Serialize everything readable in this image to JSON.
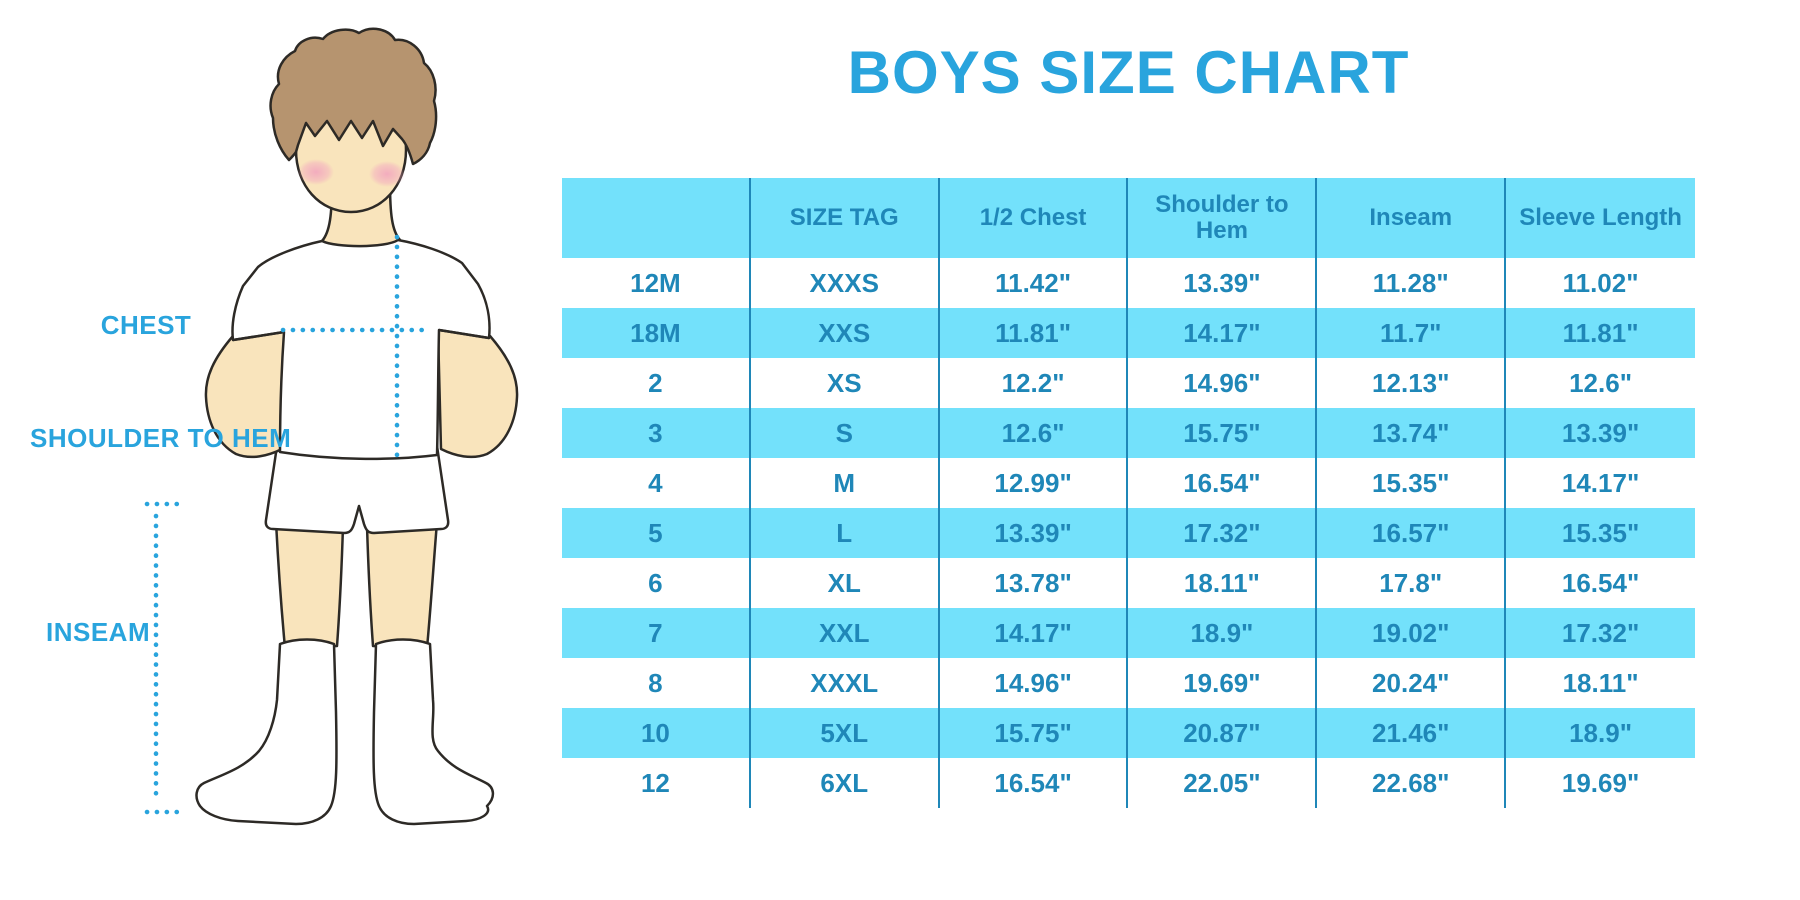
{
  "title": "BOYS SIZE CHART",
  "figure": {
    "labels": {
      "chest": "CHEST",
      "shoulder_to_hem": "SHOULDER TO HEM",
      "inseam": "INSEAM"
    }
  },
  "table": {
    "columns": [
      "",
      "SIZE TAG",
      "1/2 Chest",
      "Shoulder to Hem",
      "Inseam",
      "Sleeve Length"
    ],
    "rows": [
      [
        "12M",
        "XXXS",
        "11.42\"",
        "13.39\"",
        "11.28\"",
        "11.02\""
      ],
      [
        "18M",
        "XXS",
        "11.81\"",
        "14.17\"",
        "11.7\"",
        "11.81\""
      ],
      [
        "2",
        "XS",
        "12.2\"",
        "14.96\"",
        "12.13\"",
        "12.6\""
      ],
      [
        "3",
        "S",
        "12.6\"",
        "15.75\"",
        "13.74\"",
        "13.39\""
      ],
      [
        "4",
        "M",
        "12.99\"",
        "16.54\"",
        "15.35\"",
        "14.17\""
      ],
      [
        "5",
        "L",
        "13.39\"",
        "17.32\"",
        "16.57\"",
        "15.35\""
      ],
      [
        "6",
        "XL",
        "13.78\"",
        "18.11\"",
        "17.8\"",
        "16.54\""
      ],
      [
        "7",
        "XXL",
        "14.17\"",
        "18.9\"",
        "19.02\"",
        "17.32\""
      ],
      [
        "8",
        "XXXL",
        "14.96\"",
        "19.69\"",
        "20.24\"",
        "18.11\""
      ],
      [
        "10",
        "5XL",
        "15.75\"",
        "20.87\"",
        "21.46\"",
        "18.9\""
      ],
      [
        "12",
        "6XL",
        "16.54\"",
        "22.05\"",
        "22.68\"",
        "19.69\""
      ]
    ]
  },
  "colors": {
    "accent_blue": "#29A4DD",
    "row_band_blue": "#73E1FB",
    "table_text_blue": "#1F87B8",
    "skin": "#F9E4BC",
    "hair": "#B6946F"
  }
}
